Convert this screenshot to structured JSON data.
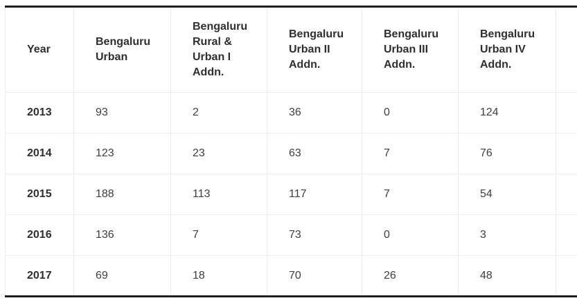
{
  "chart_data": {
    "type": "table",
    "title": "",
    "columns": [
      "Year",
      "Bengaluru Urban",
      "Bengaluru Rural & Urban I Addn.",
      "Bengaluru Urban II Addn.",
      "Bengaluru Urban III Addn.",
      "Bengaluru Urban IV Addn."
    ],
    "rows": [
      [
        "2013",
        93,
        2,
        36,
        0,
        124
      ],
      [
        "2014",
        123,
        23,
        63,
        7,
        76
      ],
      [
        "2015",
        188,
        113,
        117,
        7,
        54
      ],
      [
        "2016",
        136,
        7,
        73,
        0,
        3
      ],
      [
        "2017",
        69,
        18,
        70,
        26,
        48
      ]
    ]
  },
  "table": {
    "header_labels": [
      "Year",
      "Bengaluru\nUrban",
      "Bengaluru\nRural &\nUrban I\nAddn.",
      "Bengaluru\nUrban II\nAddn.",
      "Bengaluru\nUrban III\nAddn.",
      "Bengaluru\nUrban IV\nAddn.",
      ""
    ]
  },
  "colors": {
    "border_dark": "#1f1f1f",
    "grid_line": "#ececec",
    "header_text": "#2f2f2f",
    "body_text": "#3e3e3e",
    "background": "#ffffff"
  }
}
